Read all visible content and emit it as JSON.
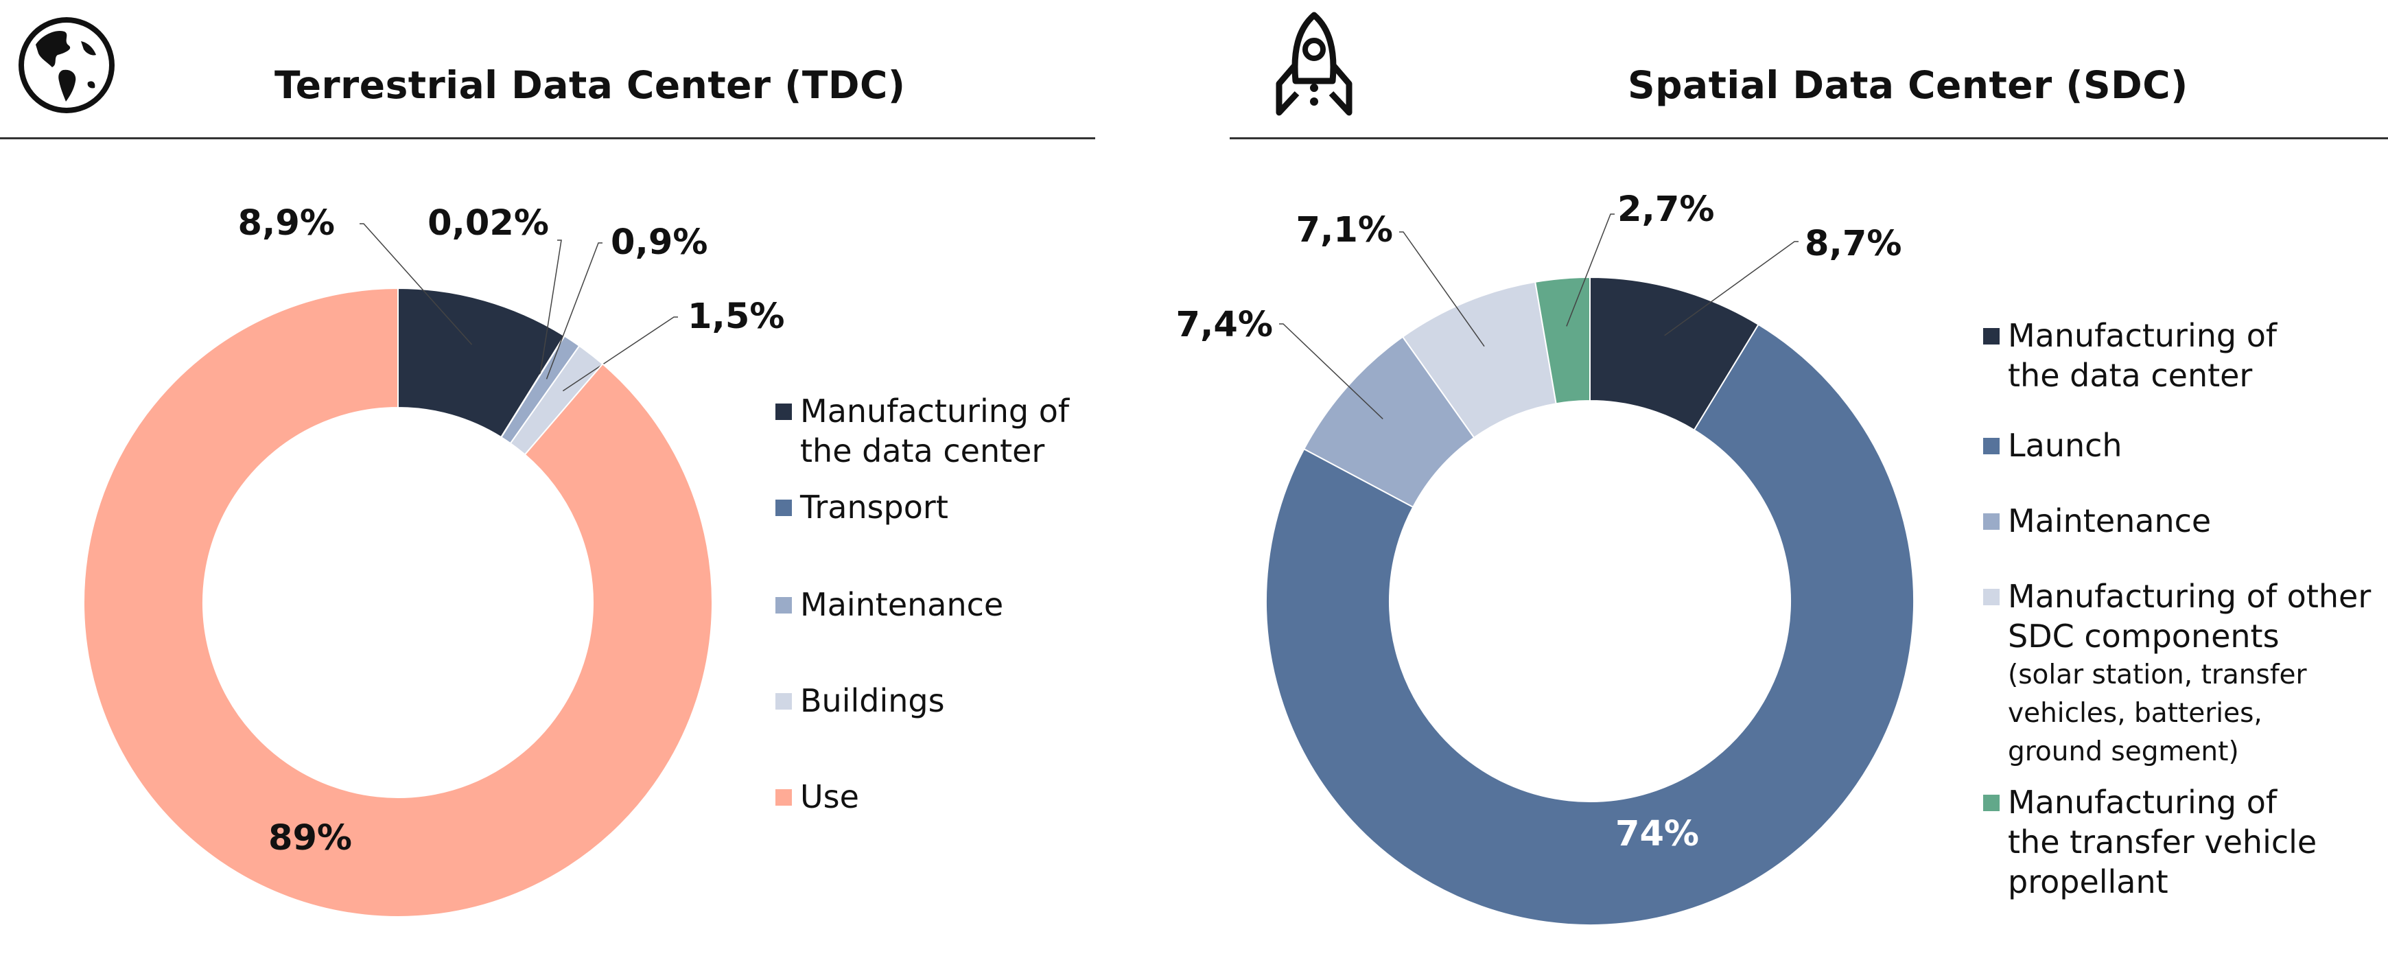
{
  "colors": {
    "manufacturing": "#263144",
    "transport": "#56739b",
    "maintenance": "#9aabc8",
    "buildings": "#d0d7e5",
    "use": "#ffab96",
    "propellant": "#62a88a",
    "icon": "#111111"
  },
  "tdc": {
    "title": "Terrestrial Data Center (TDC)",
    "icon": "globe-icon",
    "legend": [
      {
        "label": "Manufacturing of\nthe data center"
      },
      {
        "label": "Transport"
      },
      {
        "label": "Maintenance"
      },
      {
        "label": "Buildings"
      },
      {
        "label": "Use"
      }
    ]
  },
  "sdc": {
    "title": "Spatial Data Center (SDC)",
    "icon": "rocket-icon",
    "legend": [
      {
        "label": "Manufacturing of\nthe data center"
      },
      {
        "label": "Launch"
      },
      {
        "label": "Maintenance"
      },
      {
        "label": "Manufacturing of other\nSDC components",
        "sub": "(solar station, transfer\nvehicles, batteries,\nground segment)"
      },
      {
        "label": "Manufacturing of\nthe transfer vehicle\npropellant"
      }
    ]
  },
  "chart_data": [
    {
      "type": "pie",
      "title": "Terrestrial Data Center (TDC)",
      "categories": [
        "Manufacturing of the data center",
        "Transport",
        "Maintenance",
        "Buildings",
        "Use"
      ],
      "values": [
        8.9,
        0.02,
        0.9,
        1.5,
        89
      ],
      "labels": [
        "8,9%",
        "0,02%",
        "0,9%",
        "1,5%",
        "89%"
      ],
      "colors": [
        "#263144",
        "#56739b",
        "#9aabc8",
        "#d0d7e5",
        "#ffab96"
      ],
      "legend": "right"
    },
    {
      "type": "pie",
      "title": "Spatial Data Center (SDC)",
      "categories": [
        "Manufacturing of the data center",
        "Launch",
        "Maintenance",
        "Manufacturing of other SDC components",
        "Manufacturing of the transfer vehicle propellant"
      ],
      "values": [
        8.7,
        74,
        7.4,
        7.1,
        2.7
      ],
      "labels": [
        "8,7%",
        "74%",
        "7,4%",
        "7,1%",
        "2,7%"
      ],
      "colors": [
        "#263144",
        "#56739b",
        "#9aabc8",
        "#d0d7e5",
        "#62a88a"
      ],
      "legend": "right"
    }
  ]
}
